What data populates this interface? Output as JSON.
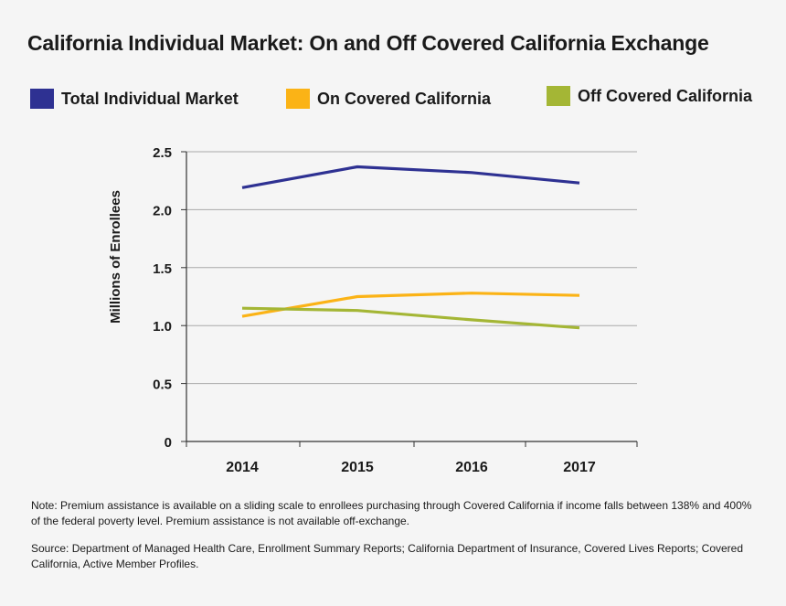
{
  "title": "California Individual Market: On and Off Covered California Exchange",
  "legend": [
    {
      "label": "Total Individual Market",
      "color": "#2e3192"
    },
    {
      "label": "On Covered California",
      "color": "#fbb316"
    },
    {
      "label": "Off Covered California",
      "color": "#a4b635"
    }
  ],
  "chart_data": {
    "type": "line",
    "title": "California Individual Market: On and Off Covered California Exchange",
    "xlabel": "",
    "ylabel": "Millions of Enrollees",
    "categories": [
      "2014",
      "2015",
      "2016",
      "2017"
    ],
    "x_tick_labels": [
      "2014",
      "2015",
      "2016",
      "2017"
    ],
    "y_tick_labels": [
      "0",
      "0.5",
      "1.0",
      "1.5",
      "2.0",
      "2.5"
    ],
    "y_ticks": [
      0,
      0.5,
      1.0,
      1.5,
      2.0,
      2.5
    ],
    "ylim": [
      0,
      2.5
    ],
    "grid": true,
    "legend_position": "top",
    "series": [
      {
        "name": "Total Individual Market",
        "color": "#2e3192",
        "values": [
          2.19,
          2.37,
          2.32,
          2.23
        ]
      },
      {
        "name": "On Covered California",
        "color": "#fbb316",
        "values": [
          1.08,
          1.25,
          1.28,
          1.26
        ]
      },
      {
        "name": "Off Covered California",
        "color": "#a4b635",
        "values": [
          1.15,
          1.13,
          1.05,
          0.98
        ]
      }
    ]
  },
  "notes": {
    "note": "Note: Premium assistance is available on a sliding scale to enrollees purchasing through Covered California if income falls between 138% and 400% of the federal poverty level. Premium assistance is not available off-exchange.",
    "source": "Source: Department of Managed Health Care, Enrollment Summary Reports; California Department of Insurance, Covered Lives Reports; Covered California, Active Member Profiles."
  }
}
